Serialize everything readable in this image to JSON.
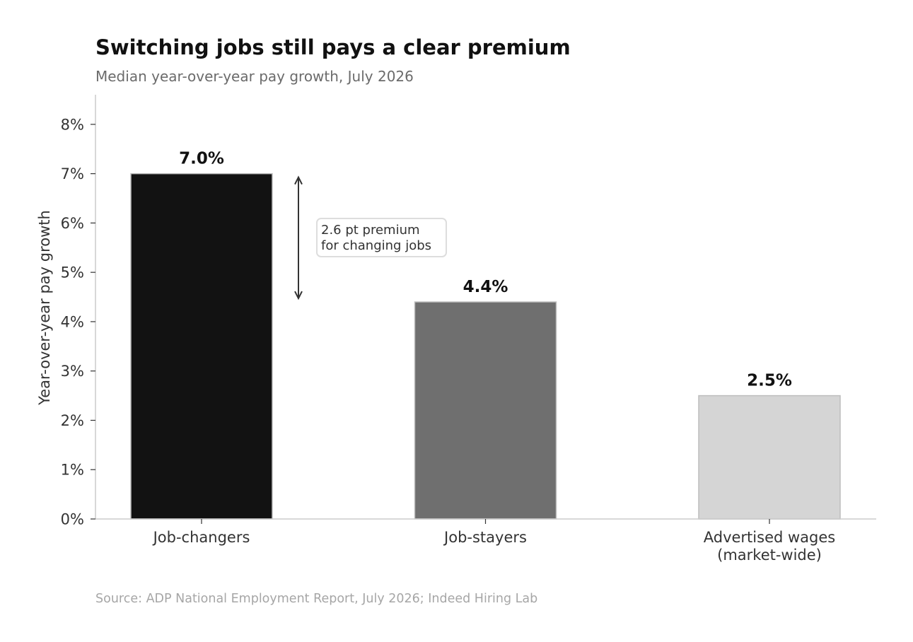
{
  "chart_data": {
    "type": "bar",
    "title": "Switching jobs still pays a clear premium",
    "subtitle": "Median year-over-year pay growth, July 2026",
    "ylabel": "Year-over-year pay growth",
    "xlabel": "",
    "categories": [
      [
        "Job-changers"
      ],
      [
        "Job-stayers"
      ],
      [
        "Advertised wages",
        "(market-wide)"
      ]
    ],
    "values": [
      7.0,
      4.4,
      2.5
    ],
    "value_labels": [
      "7.0%",
      "4.4%",
      "2.5%"
    ],
    "bar_colors": [
      "#121212",
      "#6f6f6f",
      "#d5d5d5"
    ],
    "ylim": [
      0,
      8.6
    ],
    "yticks": [
      0,
      1,
      2,
      3,
      4,
      5,
      6,
      7,
      8
    ],
    "ytick_labels": [
      "0%",
      "1%",
      "2%",
      "3%",
      "4%",
      "5%",
      "6%",
      "7%",
      "8%"
    ],
    "grid": false,
    "annotation": {
      "lines": [
        "2.6 pt premium",
        "for changing jobs"
      ],
      "from_value": 7.0,
      "to_value": 4.4
    },
    "source": "Source: ADP National Employment Report, July 2026; Indeed Hiring Lab"
  }
}
